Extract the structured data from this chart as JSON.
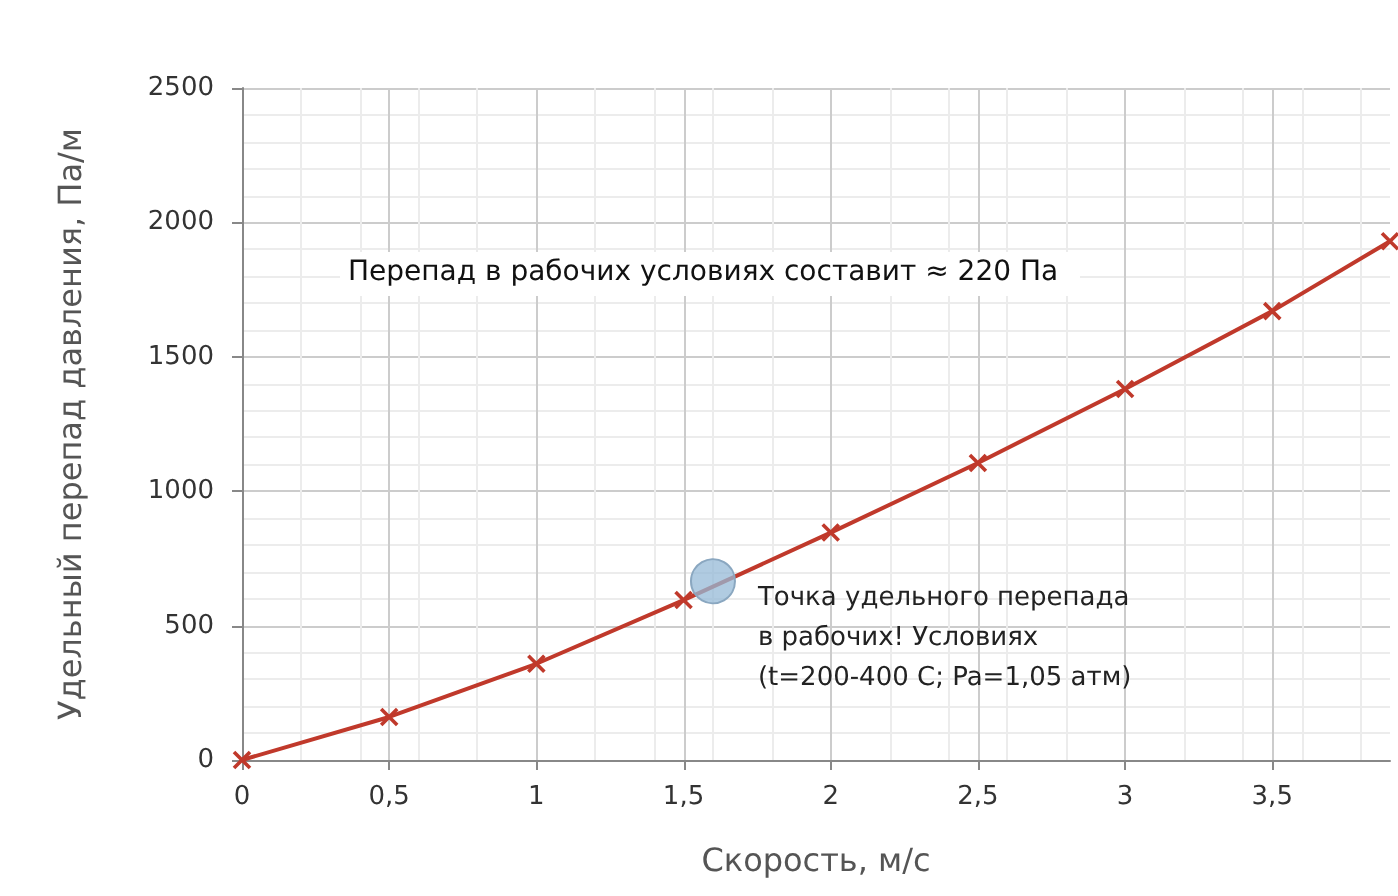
{
  "chart_data": {
    "type": "line",
    "xlabel": "Скорость, м/с",
    "ylabel": "Удельный перепад давления, Па/м",
    "x": [
      0,
      0.5,
      1,
      1.5,
      2,
      2.5,
      3,
      3.5,
      3.9
    ],
    "series": [
      {
        "color": "#c0392b",
        "values": [
          0,
          160,
          358,
          595,
          846,
          1105,
          1380,
          1670,
          1930
        ]
      }
    ],
    "xlim": [
      0,
      3.9
    ],
    "xticks": [
      0,
      {
        "value": 0.5,
        "label": "0,5"
      },
      1,
      {
        "value": 1.5,
        "label": "1,5"
      },
      2,
      {
        "value": 2.5,
        "label": "2,5"
      },
      3,
      {
        "value": 3.5,
        "label": "3,5"
      }
    ],
    "ylim": [
      0,
      2500
    ],
    "yticks": [
      0,
      500,
      1000,
      1500,
      2000,
      2500
    ],
    "grid": true,
    "marker": "cross",
    "line_style": "solid",
    "annotations": [
      "Перепад в рабочих условиях составит ≈ 220 Па",
      {
        "text": "Точка удельного перепада\nв рабочих! Условиях\n(t=200-400 C; Pa=1,05 атм)",
        "x": 1.6,
        "y": 665
      }
    ]
  }
}
